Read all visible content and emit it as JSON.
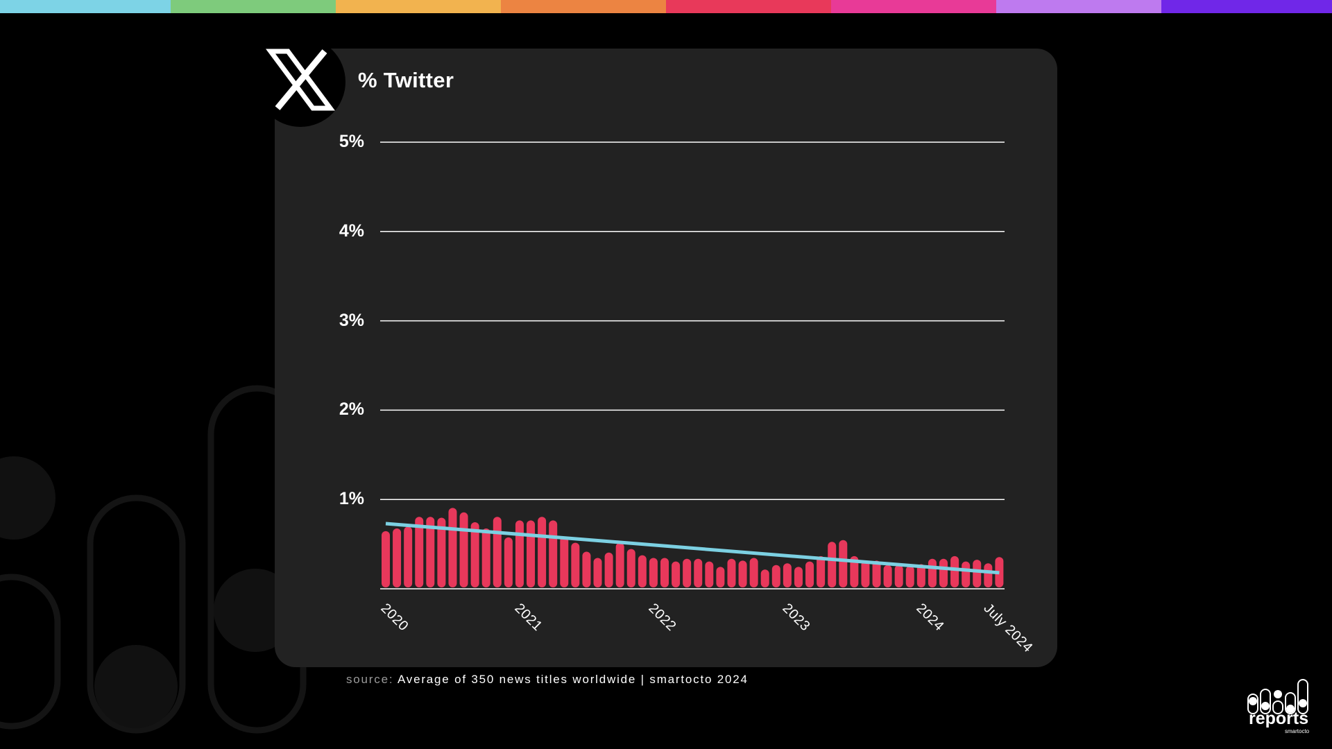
{
  "top_bar_colors": [
    "#7dd3e6",
    "#7ecb7c",
    "#f2b34f",
    "#ec8442",
    "#e8395a",
    "#e83a97",
    "#be7aef",
    "#7027e8"
  ],
  "header": {
    "logo_icon": "x-logo-icon",
    "title": "% Twitter"
  },
  "footer": {
    "source_prefix": "source:",
    "source_text": "Average of 350 news titles worldwide | smartocto 2024"
  },
  "brand": {
    "name": "reports",
    "sub": "smartocto"
  },
  "colors": {
    "bar": "#e8385b",
    "trend": "#7cd0e2",
    "card": "#222222",
    "grid": "#ffffff"
  },
  "chart_data": {
    "type": "bar",
    "title": "% Twitter",
    "xlabel": "",
    "ylabel": "",
    "ylim": [
      0,
      5
    ],
    "y_ticks": [
      "5%",
      "4%",
      "3%",
      "2%",
      "1%"
    ],
    "x_tick_labels": [
      "2020",
      "2021",
      "2022",
      "2023",
      "2024",
      "July 2024"
    ],
    "grid": true,
    "legend": "none",
    "series": [
      {
        "name": "% Twitter (monthly)",
        "type": "bar",
        "values": [
          0.63,
          0.66,
          0.68,
          0.79,
          0.79,
          0.78,
          0.89,
          0.84,
          0.73,
          0.66,
          0.79,
          0.56,
          0.75,
          0.75,
          0.79,
          0.75,
          0.57,
          0.5,
          0.4,
          0.33,
          0.39,
          0.5,
          0.43,
          0.36,
          0.33,
          0.33,
          0.29,
          0.32,
          0.32,
          0.29,
          0.23,
          0.32,
          0.3,
          0.33,
          0.2,
          0.25,
          0.27,
          0.23,
          0.29,
          0.35,
          0.51,
          0.53,
          0.35,
          0.3,
          0.3,
          0.25,
          0.25,
          0.24,
          0.26,
          0.32,
          0.32,
          0.35,
          0.29,
          0.31,
          0.27,
          0.34
        ]
      },
      {
        "name": "Trend",
        "type": "line",
        "values_start_end": [
          0.73,
          0.18
        ]
      }
    ]
  }
}
